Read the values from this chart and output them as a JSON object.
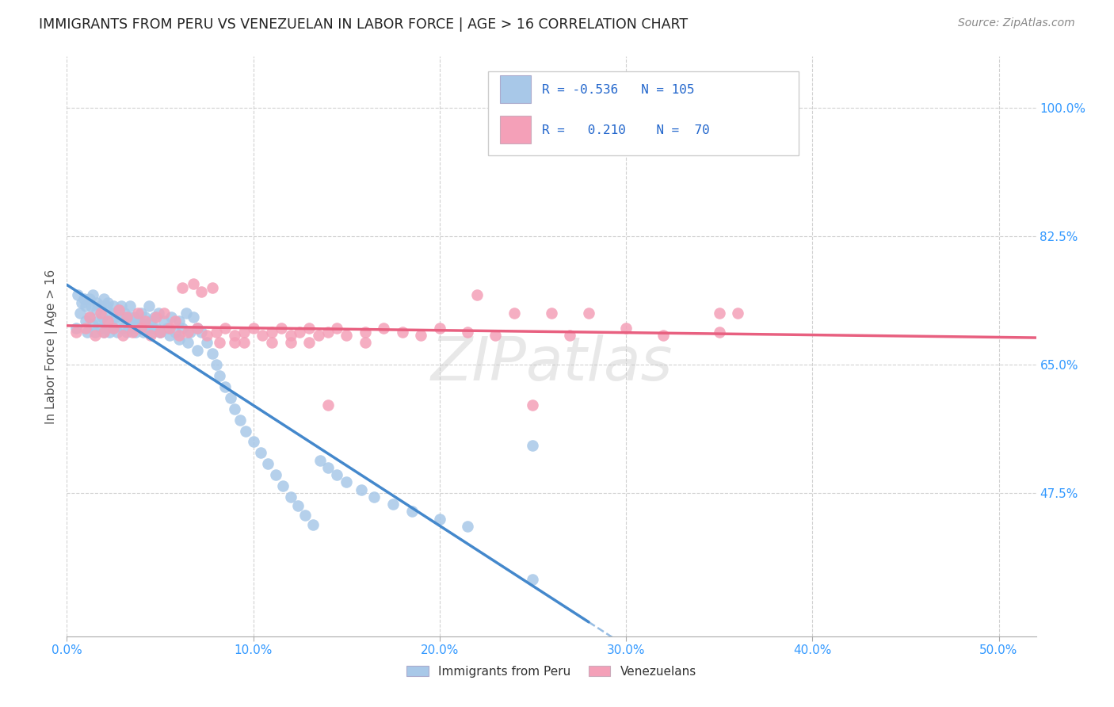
{
  "title": "IMMIGRANTS FROM PERU VS VENEZUELAN IN LABOR FORCE | AGE > 16 CORRELATION CHART",
  "source": "Source: ZipAtlas.com",
  "ylabel": "In Labor Force | Age > 16",
  "x_tick_labels": [
    "0.0%",
    "10.0%",
    "20.0%",
    "30.0%",
    "40.0%",
    "50.0%"
  ],
  "x_tick_vals": [
    0.0,
    0.1,
    0.2,
    0.3,
    0.4,
    0.5
  ],
  "y_tick_labels": [
    "100.0%",
    "82.5%",
    "65.0%",
    "47.5%"
  ],
  "y_tick_vals": [
    1.0,
    0.825,
    0.65,
    0.475
  ],
  "xlim": [
    0.0,
    0.52
  ],
  "ylim": [
    0.28,
    1.07
  ],
  "legend_R_peru": "-0.536",
  "legend_N_peru": "105",
  "legend_R_ven": "0.210",
  "legend_N_ven": "70",
  "legend_label_peru": "Immigrants from Peru",
  "legend_label_ven": "Venezuelans",
  "peru_color": "#a8c8e8",
  "ven_color": "#f4a0b8",
  "peru_line_color": "#4488cc",
  "ven_line_color": "#e86080",
  "watermark": "ZIPatlas",
  "background_color": "#ffffff",
  "peru_scatter_x": [
    0.005,
    0.007,
    0.009,
    0.01,
    0.011,
    0.012,
    0.013,
    0.014,
    0.015,
    0.016,
    0.017,
    0.018,
    0.019,
    0.02,
    0.021,
    0.022,
    0.023,
    0.024,
    0.025,
    0.026,
    0.027,
    0.028,
    0.029,
    0.03,
    0.031,
    0.032,
    0.033,
    0.034,
    0.035,
    0.036,
    0.037,
    0.038,
    0.039,
    0.04,
    0.041,
    0.042,
    0.043,
    0.044,
    0.045,
    0.046,
    0.047,
    0.048,
    0.049,
    0.05,
    0.052,
    0.054,
    0.056,
    0.058,
    0.06,
    0.062,
    0.064,
    0.066,
    0.068,
    0.07,
    0.072,
    0.075,
    0.078,
    0.08,
    0.082,
    0.085,
    0.088,
    0.09,
    0.093,
    0.096,
    0.1,
    0.104,
    0.108,
    0.112,
    0.116,
    0.12,
    0.124,
    0.128,
    0.132,
    0.136,
    0.14,
    0.145,
    0.15,
    0.158,
    0.165,
    0.175,
    0.185,
    0.2,
    0.215,
    0.25,
    0.006,
    0.008,
    0.01,
    0.012,
    0.014,
    0.016,
    0.018,
    0.02,
    0.022,
    0.025,
    0.028,
    0.031,
    0.034,
    0.038,
    0.042,
    0.046,
    0.05,
    0.055,
    0.06,
    0.065,
    0.07,
    0.25
  ],
  "peru_scatter_y": [
    0.7,
    0.72,
    0.74,
    0.71,
    0.695,
    0.715,
    0.73,
    0.705,
    0.695,
    0.725,
    0.71,
    0.7,
    0.715,
    0.695,
    0.73,
    0.71,
    0.695,
    0.72,
    0.7,
    0.715,
    0.695,
    0.71,
    0.73,
    0.7,
    0.715,
    0.695,
    0.71,
    0.73,
    0.7,
    0.715,
    0.695,
    0.71,
    0.7,
    0.72,
    0.695,
    0.715,
    0.7,
    0.73,
    0.71,
    0.695,
    0.715,
    0.7,
    0.72,
    0.695,
    0.71,
    0.7,
    0.715,
    0.695,
    0.71,
    0.7,
    0.72,
    0.695,
    0.715,
    0.7,
    0.695,
    0.68,
    0.665,
    0.65,
    0.635,
    0.62,
    0.605,
    0.59,
    0.575,
    0.56,
    0.545,
    0.53,
    0.515,
    0.5,
    0.485,
    0.47,
    0.458,
    0.445,
    0.432,
    0.52,
    0.51,
    0.5,
    0.49,
    0.48,
    0.47,
    0.46,
    0.45,
    0.44,
    0.43,
    0.358,
    0.745,
    0.735,
    0.73,
    0.74,
    0.745,
    0.735,
    0.73,
    0.74,
    0.735,
    0.73,
    0.725,
    0.72,
    0.715,
    0.71,
    0.705,
    0.7,
    0.695,
    0.69,
    0.685,
    0.68,
    0.67,
    0.54
  ],
  "ven_scatter_x": [
    0.005,
    0.01,
    0.015,
    0.02,
    0.025,
    0.03,
    0.035,
    0.04,
    0.045,
    0.05,
    0.055,
    0.06,
    0.065,
    0.07,
    0.075,
    0.08,
    0.085,
    0.09,
    0.095,
    0.1,
    0.105,
    0.11,
    0.115,
    0.12,
    0.125,
    0.13,
    0.135,
    0.14,
    0.145,
    0.15,
    0.16,
    0.17,
    0.18,
    0.19,
    0.2,
    0.215,
    0.23,
    0.25,
    0.27,
    0.3,
    0.32,
    0.35,
    0.012,
    0.018,
    0.022,
    0.028,
    0.032,
    0.038,
    0.042,
    0.048,
    0.052,
    0.058,
    0.062,
    0.068,
    0.072,
    0.078,
    0.082,
    0.09,
    0.095,
    0.11,
    0.12,
    0.13,
    0.14,
    0.16,
    0.22,
    0.24,
    0.26,
    0.28,
    0.35,
    0.36
  ],
  "ven_scatter_y": [
    0.695,
    0.7,
    0.69,
    0.695,
    0.7,
    0.69,
    0.695,
    0.7,
    0.69,
    0.695,
    0.7,
    0.69,
    0.695,
    0.7,
    0.69,
    0.695,
    0.7,
    0.69,
    0.695,
    0.7,
    0.69,
    0.695,
    0.7,
    0.69,
    0.695,
    0.7,
    0.69,
    0.695,
    0.7,
    0.69,
    0.695,
    0.7,
    0.695,
    0.69,
    0.7,
    0.695,
    0.69,
    0.595,
    0.69,
    0.7,
    0.69,
    0.695,
    0.715,
    0.72,
    0.71,
    0.725,
    0.715,
    0.72,
    0.71,
    0.715,
    0.72,
    0.71,
    0.755,
    0.76,
    0.75,
    0.755,
    0.68,
    0.68,
    0.68,
    0.68,
    0.68,
    0.68,
    0.595,
    0.68,
    0.745,
    0.72,
    0.72,
    0.72,
    0.72,
    0.72
  ]
}
